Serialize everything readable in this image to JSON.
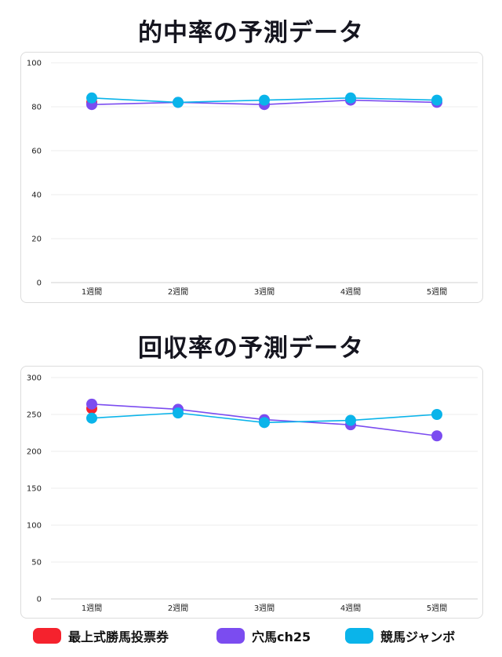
{
  "chart_data": [
    {
      "type": "line",
      "title": "的中率の予測データ",
      "categories": [
        "1週間",
        "2週間",
        "3週間",
        "4週間",
        "5週間"
      ],
      "ylim": [
        0,
        100
      ],
      "yticks": [
        0,
        20,
        40,
        60,
        80,
        100
      ],
      "grid": true,
      "series": [
        {
          "name": "最上式勝馬投票券",
          "color": "#f5222d",
          "values": [
            82,
            null,
            null,
            null,
            null
          ]
        },
        {
          "name": "穴馬ch25",
          "color": "#7b4cf0",
          "values": [
            81,
            82,
            81,
            83,
            82
          ]
        },
        {
          "name": "競馬ジャンボ",
          "color": "#0ab4ea",
          "values": [
            84,
            82,
            83,
            84,
            83
          ]
        }
      ]
    },
    {
      "type": "line",
      "title": "回収率の予測データ",
      "categories": [
        "1週間",
        "2週間",
        "3週間",
        "4週間",
        "5週間"
      ],
      "ylim": [
        0,
        300
      ],
      "yticks": [
        0,
        50,
        100,
        150,
        200,
        250,
        300
      ],
      "grid": true,
      "series": [
        {
          "name": "最上式勝馬投票券",
          "color": "#f5222d",
          "values": [
            258,
            null,
            null,
            null,
            null
          ]
        },
        {
          "name": "穴馬ch25",
          "color": "#7b4cf0",
          "values": [
            264,
            257,
            243,
            236,
            221
          ]
        },
        {
          "name": "競馬ジャンボ",
          "color": "#0ab4ea",
          "values": [
            245,
            252,
            239,
            242,
            250
          ]
        }
      ]
    }
  ],
  "legend": [
    {
      "label": "最上式勝馬投票券",
      "color": "#f5222d"
    },
    {
      "label": "穴馬ch25",
      "color": "#7b4cf0"
    },
    {
      "label": "競馬ジャンボ",
      "color": "#0ab4ea"
    }
  ]
}
